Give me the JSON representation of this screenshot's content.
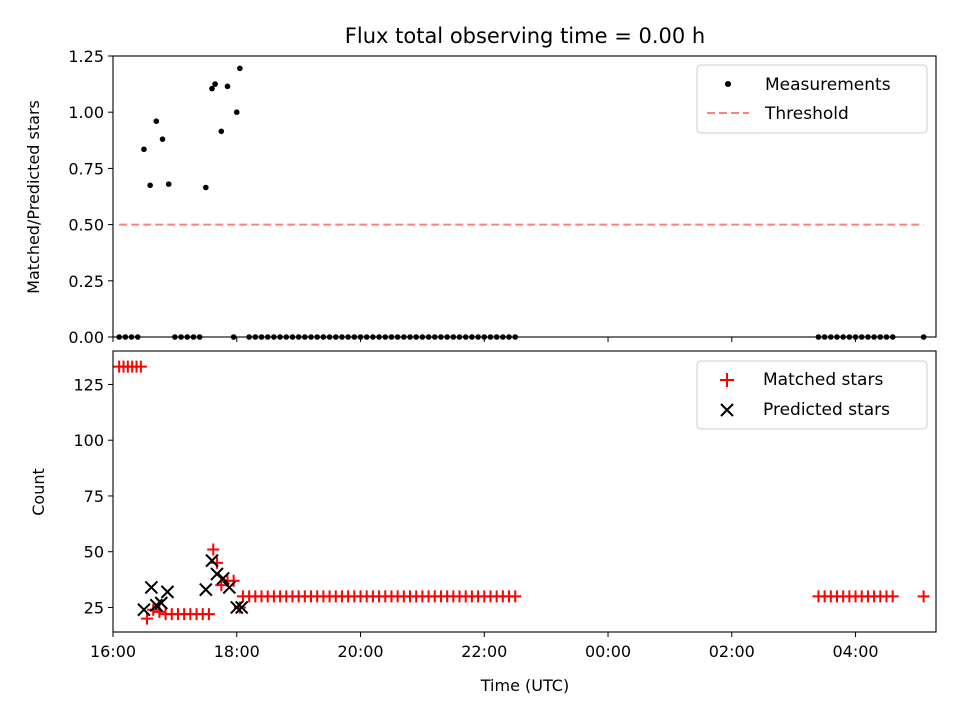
{
  "chart_data": [
    {
      "type": "scatter",
      "title": "Flux total observing time = 0.00 h",
      "ylabel": "Matched/Predicted stars",
      "xlabel": "",
      "xlim": [
        16.0,
        29.3
      ],
      "ylim": [
        0,
        1.25
      ],
      "yticks": [
        0,
        0.25,
        0.5,
        0.75,
        1.0,
        1.25
      ],
      "ytick_labels": [
        "0.00",
        "0.25",
        "0.50",
        "0.75",
        "1.00",
        "1.25"
      ],
      "legend": {
        "position": "top-right",
        "entries": [
          "Measurements",
          "Threshold"
        ]
      },
      "series": [
        {
          "name": "Measurements",
          "color": "#000000",
          "marker": "dot",
          "x": [
            16.1,
            16.2,
            16.3,
            16.4,
            16.5,
            16.6,
            16.7,
            16.8,
            16.9,
            17.0,
            17.1,
            17.2,
            17.3,
            17.4,
            17.5,
            17.6,
            17.65,
            17.75,
            17.85,
            17.95,
            18.0,
            18.05,
            18.2,
            18.3,
            18.4,
            18.5,
            18.6,
            18.7,
            18.8,
            18.9,
            19.0,
            19.1,
            19.2,
            19.3,
            19.4,
            19.5,
            19.6,
            19.7,
            19.8,
            19.9,
            20.0,
            20.1,
            20.2,
            20.3,
            20.4,
            20.5,
            20.6,
            20.7,
            20.8,
            20.9,
            21.0,
            21.1,
            21.2,
            21.3,
            21.4,
            21.5,
            21.6,
            21.7,
            21.8,
            21.9,
            22.0,
            22.1,
            22.2,
            22.3,
            22.4,
            22.5,
            27.4,
            27.5,
            27.6,
            27.7,
            27.8,
            27.9,
            28.0,
            28.1,
            28.2,
            28.3,
            28.4,
            28.5,
            28.6,
            29.1
          ],
          "y": [
            0,
            0,
            0,
            0,
            0.835,
            0.675,
            0.96,
            0.88,
            0.68,
            0,
            0,
            0,
            0,
            0,
            0.665,
            1.105,
            1.125,
            0.915,
            1.115,
            0,
            1.0,
            1.195,
            0,
            0,
            0,
            0,
            0,
            0,
            0,
            0,
            0,
            0,
            0,
            0,
            0,
            0,
            0,
            0,
            0,
            0,
            0,
            0,
            0,
            0,
            0,
            0,
            0,
            0,
            0,
            0,
            0,
            0,
            0,
            0,
            0,
            0,
            0,
            0,
            0,
            0,
            0,
            0,
            0,
            0,
            0,
            0,
            0,
            0,
            0,
            0,
            0,
            0,
            0,
            0,
            0,
            0,
            0,
            0,
            0,
            0
          ]
        },
        {
          "name": "Threshold",
          "color": "#ff7f7f",
          "style": "dashed",
          "x": [
            16.1,
            29.1
          ],
          "y": [
            0.5,
            0.5
          ]
        }
      ]
    },
    {
      "type": "scatter",
      "title": "",
      "ylabel": "Count",
      "xlabel": "Time (UTC)",
      "xlim": [
        16.0,
        29.3
      ],
      "ylim": [
        14,
        140
      ],
      "yticks": [
        25,
        50,
        75,
        100,
        125
      ],
      "ytick_labels": [
        "25",
        "50",
        "75",
        "100",
        "125"
      ],
      "xticks": [
        16,
        18,
        20,
        22,
        24,
        26,
        28
      ],
      "xtick_labels": [
        "16:00",
        "18:00",
        "20:00",
        "22:00",
        "00:00",
        "02:00",
        "04:00"
      ],
      "legend": {
        "position": "top-right",
        "entries": [
          "Matched stars",
          "Predicted stars"
        ]
      },
      "series": [
        {
          "name": "Matched stars",
          "color": "#ff0000",
          "marker": "plus",
          "x": [
            16.1,
            16.17,
            16.24,
            16.31,
            16.38,
            16.45,
            16.55,
            16.65,
            16.75,
            16.85,
            16.95,
            17.05,
            17.15,
            17.25,
            17.35,
            17.45,
            17.55,
            17.62,
            17.68,
            17.75,
            17.85,
            17.95,
            18.05,
            18.1,
            18.2,
            18.3,
            18.4,
            18.5,
            18.6,
            18.7,
            18.8,
            18.9,
            19.0,
            19.1,
            19.2,
            19.3,
            19.4,
            19.5,
            19.6,
            19.7,
            19.8,
            19.9,
            20.0,
            20.1,
            20.2,
            20.3,
            20.4,
            20.5,
            20.6,
            20.7,
            20.8,
            20.9,
            21.0,
            21.1,
            21.2,
            21.3,
            21.4,
            21.5,
            21.6,
            21.7,
            21.8,
            21.9,
            22.0,
            22.1,
            22.2,
            22.3,
            22.4,
            22.5,
            27.4,
            27.5,
            27.6,
            27.7,
            27.8,
            27.9,
            28.0,
            28.1,
            28.2,
            28.3,
            28.4,
            28.5,
            28.6,
            29.1
          ],
          "y": [
            133,
            133,
            133,
            133,
            133,
            133,
            20,
            24,
            23,
            22,
            22,
            22,
            22,
            22,
            22,
            22,
            22,
            51,
            45,
            35,
            37,
            37,
            25,
            30,
            30,
            30,
            30,
            30,
            30,
            30,
            30,
            30,
            30,
            30,
            30,
            30,
            30,
            30,
            30,
            30,
            30,
            30,
            30,
            30,
            30,
            30,
            30,
            30,
            30,
            30,
            30,
            30,
            30,
            30,
            30,
            30,
            30,
            30,
            30,
            30,
            30,
            30,
            30,
            30,
            30,
            30,
            30,
            30,
            30,
            30,
            30,
            30,
            30,
            30,
            30,
            30,
            30,
            30,
            30,
            30,
            30,
            30
          ]
        },
        {
          "name": "Predicted stars",
          "color": "#000000",
          "marker": "x",
          "x": [
            16.5,
            16.62,
            16.7,
            16.78,
            16.88,
            17.5,
            17.6,
            17.68,
            17.78,
            17.88,
            18.0,
            18.08
          ],
          "y": [
            24,
            34,
            26,
            27,
            32,
            33,
            46,
            40,
            38,
            34,
            25,
            25
          ]
        }
      ]
    }
  ]
}
